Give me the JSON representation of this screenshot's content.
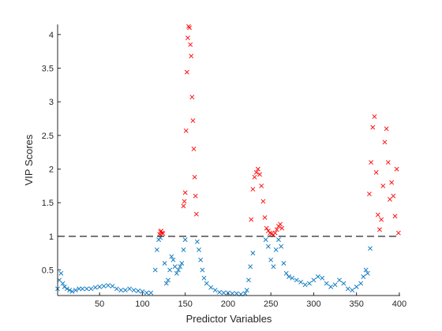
{
  "chart_data": {
    "type": "scatter",
    "title": "",
    "xlabel": "Predictor Variables",
    "ylabel": "VIP Scores",
    "xlim": [
      1,
      401
    ],
    "ylim": [
      0.12,
      4.15
    ],
    "xticks": [
      50,
      100,
      150,
      200,
      250,
      300,
      350,
      400
    ],
    "yticks": [
      0.5,
      1,
      1.5,
      2,
      2.5,
      3,
      3.5,
      4
    ],
    "xtick_labels": [
      "50",
      "100",
      "150",
      "200",
      "250",
      "300",
      "350",
      "400"
    ],
    "ytick_labels": [
      "0.5",
      "1",
      "1.5",
      "2",
      "2.5",
      "3",
      "3.5",
      "4"
    ],
    "grid": false,
    "marker": "x",
    "colors": {
      "below": "#0072BD",
      "above": "#FF0000",
      "threshold_line": "#262626",
      "axis": "#262626"
    },
    "threshold": 1,
    "threshold_style": "dashed",
    "series": [
      {
        "role": "below-threshold",
        "x": [
          1,
          3,
          5,
          7,
          9,
          12,
          15,
          18,
          22,
          26,
          30,
          35,
          40,
          45,
          50,
          55,
          60,
          65,
          70,
          75,
          80,
          85,
          90,
          95,
          100,
          105,
          110,
          115,
          117,
          119,
          121,
          126,
          128,
          130,
          132,
          134,
          136,
          138,
          140,
          142,
          144,
          146,
          148,
          150,
          164,
          166,
          168,
          170,
          172,
          175,
          180,
          185,
          190,
          195,
          200,
          205,
          210,
          215,
          220,
          222,
          224,
          226,
          229,
          244,
          247,
          250,
          253,
          256,
          259,
          262,
          265,
          268,
          271,
          275,
          280,
          285,
          290,
          295,
          300,
          305,
          310,
          315,
          320,
          325,
          330,
          335,
          340,
          345,
          350,
          355,
          358,
          361,
          363,
          366
        ],
        "y": [
          0.22,
          0.35,
          0.45,
          0.3,
          0.25,
          0.22,
          0.2,
          0.18,
          0.2,
          0.22,
          0.22,
          0.22,
          0.22,
          0.24,
          0.25,
          0.26,
          0.27,
          0.26,
          0.22,
          0.2,
          0.2,
          0.22,
          0.2,
          0.19,
          0.18,
          0.16,
          0.16,
          0.5,
          0.8,
          0.95,
          0.98,
          0.6,
          0.3,
          0.35,
          0.5,
          0.7,
          0.65,
          0.55,
          0.45,
          0.5,
          0.55,
          0.6,
          0.8,
          0.95,
          0.92,
          0.8,
          0.65,
          0.5,
          0.38,
          0.3,
          0.24,
          0.2,
          0.17,
          0.16,
          0.16,
          0.15,
          0.15,
          0.14,
          0.15,
          0.2,
          0.35,
          0.55,
          0.75,
          0.95,
          0.85,
          0.65,
          0.55,
          0.8,
          0.95,
          0.85,
          0.6,
          0.45,
          0.4,
          0.38,
          0.35,
          0.32,
          0.28,
          0.3,
          0.35,
          0.4,
          0.38,
          0.3,
          0.25,
          0.28,
          0.35,
          0.3,
          0.22,
          0.2,
          0.25,
          0.3,
          0.4,
          0.5,
          0.45,
          0.82
        ]
      },
      {
        "role": "above-threshold",
        "x": [
          120,
          121,
          122,
          123,
          124,
          148,
          149,
          150,
          151,
          152,
          153,
          154,
          155,
          156,
          157,
          158,
          159,
          160,
          161,
          162,
          163,
          227,
          229,
          231,
          233,
          235,
          237,
          239,
          241,
          243,
          245,
          247,
          249,
          251,
          253,
          255,
          257,
          259,
          261,
          263,
          365,
          367,
          369,
          371,
          373,
          375,
          377,
          379,
          381,
          383,
          385,
          387,
          389,
          391,
          393,
          395,
          397,
          399
        ],
        "y": [
          1.03,
          1.07,
          1.08,
          1.05,
          1.04,
          1.45,
          1.52,
          1.65,
          2.57,
          3.44,
          3.95,
          4.12,
          4.1,
          3.85,
          3.68,
          3.07,
          2.72,
          2.3,
          1.88,
          1.6,
          1.33,
          1.25,
          1.7,
          1.88,
          1.95,
          2.0,
          1.92,
          1.75,
          1.52,
          1.28,
          1.12,
          1.08,
          1.05,
          1.04,
          1.02,
          1.05,
          1.1,
          1.15,
          1.18,
          1.12,
          1.63,
          2.1,
          2.62,
          2.78,
          1.95,
          1.32,
          1.1,
          1.25,
          1.75,
          2.4,
          2.6,
          2.1,
          1.55,
          1.8,
          1.6,
          1.3,
          2.0,
          1.05
        ]
      }
    ]
  }
}
